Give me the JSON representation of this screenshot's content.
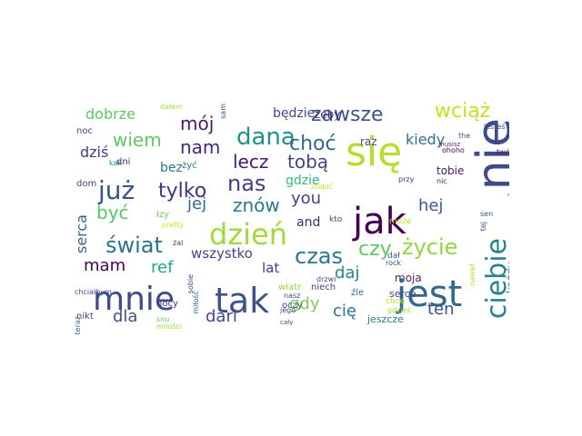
{
  "words": [
    {
      "text": "się",
      "color": "#b5de2b"
    },
    {
      "text": "nie",
      "color": "#3e4a89"
    },
    {
      "text": "jak",
      "color": "#440154"
    },
    {
      "text": "jest",
      "color": "#31688e"
    },
    {
      "text": "tak",
      "color": "#3b528b"
    },
    {
      "text": "mnie",
      "color": "#3e4a89"
    },
    {
      "text": "dzień",
      "color": "#a0da39"
    },
    {
      "text": "już",
      "color": "#3b528b"
    },
    {
      "text": "dana",
      "color": "#21918c"
    },
    {
      "text": "nas",
      "color": "#433e85"
    },
    {
      "text": "świat",
      "color": "#2c728e"
    },
    {
      "text": "życie",
      "color": "#90d743"
    },
    {
      "text": "ciebie",
      "color": "#26828e"
    },
    {
      "text": "czas",
      "color": "#2a788e"
    },
    {
      "text": "zawsze",
      "color": "#3b528b"
    },
    {
      "text": "wciąż",
      "color": "#c8e020"
    },
    {
      "text": "tylko",
      "color": "#46337e"
    },
    {
      "text": "choć",
      "color": "#31688e"
    },
    {
      "text": "czy",
      "color": "#5ec962"
    },
    {
      "text": "wiem",
      "color": "#5ec962"
    },
    {
      "text": "nam",
      "color": "#482878"
    },
    {
      "text": "znów",
      "color": "#2a788e"
    },
    {
      "text": "lecz",
      "color": "#481a6c"
    },
    {
      "text": "mój",
      "color": "#481a6c"
    },
    {
      "text": "tobą",
      "color": "#404688"
    },
    {
      "text": "być",
      "color": "#56c667"
    },
    {
      "text": "jej",
      "color": "#31688e"
    },
    {
      "text": "gdy",
      "color": "#7ad151"
    },
    {
      "text": "you",
      "color": "#414487"
    },
    {
      "text": "dari",
      "color": "#404688"
    },
    {
      "text": "dla",
      "color": "#3b528b"
    },
    {
      "text": "daj",
      "color": "#25848e"
    },
    {
      "text": "hej",
      "color": "#38588c"
    },
    {
      "text": "ten",
      "color": "#3e4a89"
    },
    {
      "text": "mam",
      "color": "#440154"
    },
    {
      "text": "ref",
      "color": "#22a884"
    },
    {
      "text": "cię",
      "color": "#2c728e"
    },
    {
      "text": "przed",
      "color": "#21918c"
    },
    {
      "text": "kiedy",
      "color": "#2c728e"
    },
    {
      "text": "dobrze",
      "color": "#5ec962"
    },
    {
      "text": "dziś",
      "color": "#443983"
    },
    {
      "text": "serca",
      "color": "#31688e"
    },
    {
      "text": "wszystko",
      "color": "#404688"
    },
    {
      "text": "lat",
      "color": "#433e85"
    },
    {
      "text": "będzie",
      "color": "#3e4a89"
    },
    {
      "text": "gdzie",
      "color": "#38b977"
    },
    {
      "text": "and",
      "color": "#482878"
    },
    {
      "text": "bez",
      "color": "#2a788e"
    },
    {
      "text": "żeby",
      "color": "#46327e"
    },
    {
      "text": "raz",
      "color": "#3b528b"
    },
    {
      "text": "tobie",
      "color": "#481c6e"
    },
    {
      "text": "moja",
      "color": "#482475"
    },
    {
      "text": "każdy",
      "color": "#2c728e"
    },
    {
      "text": "przez",
      "color": "#3e4a89"
    },
    {
      "text": "serce",
      "color": "#3e4989"
    },
    {
      "text": "jeszcze",
      "color": "#2a788e"
    },
    {
      "text": "niech",
      "color": "#443983"
    },
    {
      "text": "źle",
      "color": "#2c728e"
    },
    {
      "text": "wiatr",
      "color": "#98d83e"
    },
    {
      "text": "oczy",
      "color": "#3e4a89"
    },
    {
      "text": "nocy",
      "color": "#46337e"
    },
    {
      "text": "nikt",
      "color": "#3e4a89"
    },
    {
      "text": "noc",
      "color": "#3e4a89"
    },
    {
      "text": "dni",
      "color": "#482475"
    },
    {
      "text": "żyć",
      "color": "#2a788e"
    },
    {
      "text": "łzy",
      "color": "#6ccd5a"
    },
    {
      "text": "dom",
      "color": "#404688"
    },
    {
      "text": "kto",
      "color": "#3e4a89"
    },
    {
      "text": "może",
      "color": "#bddf26"
    },
    {
      "text": "chcę",
      "color": "#c8e020"
    },
    {
      "text": "dał",
      "color": "#3b528b"
    },
    {
      "text": "rock",
      "color": "#3e4989"
    },
    {
      "text": "gdzieś",
      "color": "#aadc32"
    },
    {
      "text": "nawet",
      "color": "#b5de2b"
    },
    {
      "text": "przy",
      "color": "#46337e"
    },
    {
      "text": "nic",
      "color": "#481f70"
    },
    {
      "text": "sen",
      "color": "#3b528b"
    },
    {
      "text": "tej",
      "color": "#404688"
    },
    {
      "text": "twój",
      "color": "#482475"
    },
    {
      "text": "jesteś",
      "color": "#3b528b"
    },
    {
      "text": "the",
      "color": "#3b528b"
    },
    {
      "text": "ohoho",
      "color": "#440154"
    },
    {
      "text": "musisz",
      "color": "#482878"
    },
    {
      "text": "dałem",
      "color": "#a5db36"
    },
    {
      "text": "sam",
      "color": "#3e4a89"
    },
    {
      "text": "kak",
      "color": "#228c8d"
    },
    {
      "text": "snu",
      "color": "#5ec962"
    },
    {
      "text": "pretty",
      "color": "#d0e11c"
    },
    {
      "text": "teraz",
      "color": "#31688e"
    },
    {
      "text": "chciałbym",
      "color": "#3e4a89"
    },
    {
      "text": "sobie",
      "color": "#3e4a89"
    },
    {
      "text": "miłość",
      "color": "#31688e"
    },
    {
      "text": "żal",
      "color": "#433e85"
    },
    {
      "text": "miłości",
      "color": "#a0da39"
    },
    {
      "text": "cały",
      "color": "#3e4a89"
    },
    {
      "text": "drzwi",
      "color": "#404688"
    },
    {
      "text": "nasz",
      "color": "#3e4a89"
    },
    {
      "text": "jego",
      "color": "#404688"
    },
    {
      "text": "zrobić",
      "color": "#c8e020"
    }
  ]
}
